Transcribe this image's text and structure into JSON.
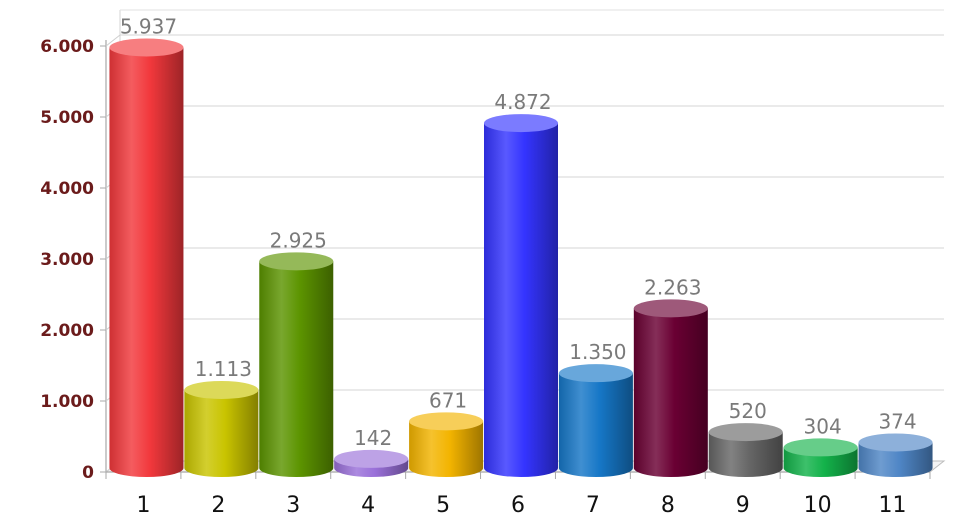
{
  "chart_data": {
    "type": "bar",
    "title": "",
    "xlabel": "",
    "ylabel": "",
    "categories": [
      "1",
      "2",
      "3",
      "4",
      "5",
      "6",
      "7",
      "8",
      "9",
      "10",
      "11"
    ],
    "values": [
      5937,
      1113,
      2925,
      142,
      671,
      4872,
      1350,
      2263,
      520,
      304,
      374
    ],
    "data_labels": [
      "5.937",
      "1.113",
      "2.925",
      "142",
      "671",
      "4.872",
      "1.350",
      "2.263",
      "520",
      "304",
      "374"
    ],
    "ylim": [
      0,
      6000
    ],
    "yticks": [
      0,
      1000,
      2000,
      3000,
      4000,
      5000,
      6000
    ],
    "ytick_labels": [
      "0",
      "1.000",
      "2.000",
      "3.000",
      "4.000",
      "5.000",
      "6.000"
    ],
    "colors": [
      "#f2383c",
      "#c9c400",
      "#5c9400",
      "#9a70d9",
      "#f3b400",
      "#3434ff",
      "#1677c7",
      "#6a0033",
      "#666666",
      "#13b24a",
      "#4f86c6"
    ],
    "grid": true,
    "style": "3d-cylinder"
  }
}
